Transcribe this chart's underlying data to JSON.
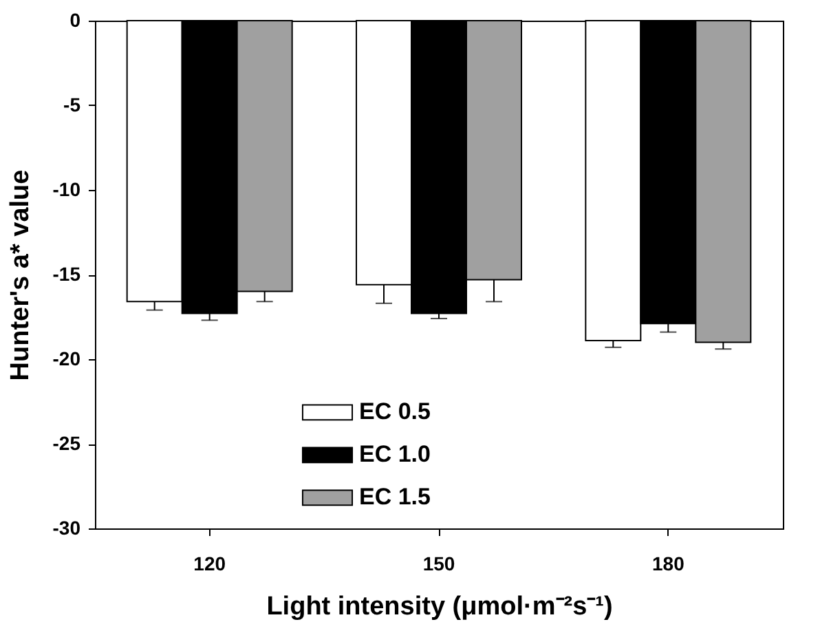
{
  "chart_data": {
    "type": "bar",
    "xlabel": "Light intensity (μmol·m⁻²s⁻¹)",
    "ylabel": "Hunter's a* value",
    "categories": [
      "120",
      "150",
      "180"
    ],
    "series": [
      {
        "name": "EC 0.5",
        "color": "#ffffff",
        "values": [
          -16.6,
          -15.6,
          -18.9
        ],
        "errors": [
          [
            -17.1,
            -16.6
          ],
          [
            -16.7,
            -15.6
          ],
          [
            -19.3,
            -18.9
          ]
        ]
      },
      {
        "name": "EC 1.0",
        "color": "#000000",
        "values": [
          -17.3,
          -17.3,
          -17.9
        ],
        "errors": [
          [
            -17.7,
            -17.3
          ],
          [
            -17.6,
            -17.3
          ],
          [
            -18.4,
            -17.9
          ]
        ]
      },
      {
        "name": "EC 1.5",
        "color": "#a0a0a0",
        "values": [
          -16.0,
          -15.3,
          -19.0
        ],
        "errors": [
          [
            -16.6,
            -16.0
          ],
          [
            -16.6,
            -15.3
          ],
          [
            -19.4,
            -19.0
          ]
        ]
      }
    ],
    "ylim": [
      -30,
      0
    ],
    "yticks": [
      -30,
      -25,
      -20,
      -15,
      -10,
      -5,
      0
    ],
    "grid": false,
    "legend": "bottom"
  }
}
